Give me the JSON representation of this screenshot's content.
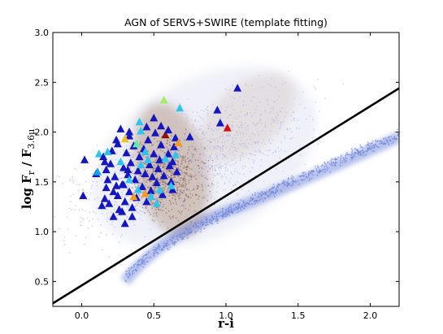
{
  "chart_data": {
    "type": "scatter",
    "title": "AGN of SERVS+SWIRE (template fitting)",
    "xlabel": "r-i",
    "ylabel": {
      "prefix": "log ",
      "f_r": "F",
      "r_sub": "r",
      "slash": " / ",
      "f_36": "F",
      "sub_36": "3.6μ"
    },
    "xlim": [
      -0.2,
      2.2
    ],
    "ylim": [
      0.25,
      3.0
    ],
    "xticks": [
      "0.0",
      "0.5",
      "1.0",
      "1.5",
      "2.0"
    ],
    "yticks": [
      "0.5",
      "1.0",
      "1.5",
      "2.0",
      "2.5",
      "3.0"
    ],
    "grid": false,
    "legend": "none",
    "background_colors": {
      "diffuse": "#b0b8dd",
      "dense": "#7f4a30",
      "stellar_locus": "#5e78d8"
    },
    "dividing_line": {
      "points": [
        [
          -0.2,
          0.28
        ],
        [
          2.2,
          2.44
        ]
      ],
      "color": "#000000"
    },
    "series": [
      {
        "marker": "triangle",
        "points": [
          [
            0.02,
            1.72,
            "#1616c0"
          ],
          [
            0.01,
            1.36,
            "#1616c0"
          ],
          [
            0.1,
            1.58,
            "#1616c0"
          ],
          [
            0.11,
            1.6,
            "#10a8e0"
          ],
          [
            0.12,
            1.78,
            "#2ec4f0"
          ],
          [
            0.15,
            1.75,
            "#1616c0"
          ],
          [
            0.16,
            1.7,
            "#1616c0"
          ],
          [
            0.17,
            1.62,
            "#1616c0"
          ],
          [
            0.14,
            1.26,
            "#1616c0"
          ],
          [
            0.16,
            1.33,
            "#1616c0"
          ],
          [
            0.17,
            1.44,
            "#1616c0"
          ],
          [
            0.18,
            1.52,
            "#1616c0"
          ],
          [
            0.19,
            1.28,
            "#1616c0"
          ],
          [
            0.2,
            1.68,
            "#1616c0"
          ],
          [
            0.21,
            1.81,
            "#1616c0"
          ],
          [
            0.22,
            1.4,
            "#1616c0"
          ],
          [
            0.23,
            1.55,
            "#1616c0"
          ],
          [
            0.24,
            1.92,
            "#1616c0"
          ],
          [
            0.25,
            1.36,
            "#1616c0"
          ],
          [
            0.26,
            1.22,
            "#1616c0"
          ],
          [
            0.27,
            2.03,
            "#1616c0"
          ],
          [
            0.28,
            1.47,
            "#1616c0"
          ],
          [
            0.29,
            1.64,
            "#1616c0"
          ],
          [
            0.3,
            1.3,
            "#1616c0"
          ],
          [
            0.31,
            1.79,
            "#1616c0"
          ],
          [
            0.32,
            1.57,
            "#1616c0"
          ],
          [
            0.33,
            1.96,
            "#1616c0"
          ],
          [
            0.33,
            1.4,
            "#1616c0"
          ],
          [
            0.34,
            1.69,
            "#1616c0"
          ],
          [
            0.35,
            1.24,
            "#1616c0"
          ],
          [
            0.36,
            1.86,
            "#1616c0"
          ],
          [
            0.37,
            1.52,
            "#1616c0"
          ],
          [
            0.38,
            1.34,
            "#1616c0"
          ],
          [
            0.39,
            1.61,
            "#1616c0"
          ],
          [
            0.4,
            1.75,
            "#1616c0"
          ],
          [
            0.41,
            2.01,
            "#2ec4f0"
          ],
          [
            0.42,
            1.45,
            "#1616c0"
          ],
          [
            0.43,
            1.83,
            "#1616c0"
          ],
          [
            0.44,
            1.58,
            "#1616c0"
          ],
          [
            0.45,
            1.3,
            "#1616c0"
          ],
          [
            0.46,
            1.92,
            "#1616c0"
          ],
          [
            0.47,
            1.67,
            "#1616c0"
          ],
          [
            0.48,
            1.41,
            "#1616c0"
          ],
          [
            0.49,
            1.55,
            "#1616c0"
          ],
          [
            0.5,
            1.78,
            "#1616c0"
          ],
          [
            0.51,
            1.99,
            "#1616c0"
          ],
          [
            0.52,
            1.49,
            "#1616c0"
          ],
          [
            0.53,
            1.63,
            "#1616c0"
          ],
          [
            0.54,
            1.72,
            "#1616c0"
          ],
          [
            0.55,
            1.87,
            "#1616c0"
          ],
          [
            0.56,
            1.37,
            "#1616c0"
          ],
          [
            0.57,
            1.56,
            "#1616c0"
          ],
          [
            0.58,
            1.97,
            "#8b1010"
          ],
          [
            0.6,
            1.78,
            "#1616c0"
          ],
          [
            0.61,
            1.66,
            "#1616c0"
          ],
          [
            0.62,
            1.5,
            "#1616c0"
          ],
          [
            0.63,
            1.42,
            "#1616c0"
          ],
          [
            0.64,
            1.85,
            "#1616c0"
          ],
          [
            0.65,
            1.94,
            "#1616c0"
          ],
          [
            0.66,
            1.6,
            "#1616c0"
          ],
          [
            0.3,
            1.08,
            "#1616c0"
          ],
          [
            0.35,
            1.15,
            "#1616c0"
          ],
          [
            0.28,
            1.2,
            "#1616c0"
          ],
          [
            0.22,
            1.15,
            "#1616c0"
          ],
          [
            0.4,
            2.1,
            "#2ec4f0"
          ],
          [
            0.45,
            2.05,
            "#1616c0"
          ],
          [
            0.5,
            2.14,
            "#1616c0"
          ],
          [
            0.33,
            2.0,
            "#1616c0"
          ],
          [
            0.38,
            1.88,
            "#5ef0a0"
          ],
          [
            0.44,
            1.8,
            "#2ec4f0"
          ],
          [
            0.55,
            2.06,
            "#1616c0"
          ],
          [
            0.6,
            2.02,
            "#1616c0"
          ],
          [
            0.36,
            1.35,
            "#f59a20"
          ],
          [
            0.44,
            1.38,
            "#f59a20"
          ],
          [
            0.39,
            1.42,
            "#2ec4f0"
          ],
          [
            0.48,
            1.35,
            "#2ec4f0"
          ],
          [
            0.54,
            1.42,
            "#2ec4f0"
          ],
          [
            0.62,
            1.46,
            "#2ec4f0"
          ],
          [
            0.3,
            1.93,
            "#f0c020"
          ],
          [
            0.27,
            1.7,
            "#2ec4f0"
          ],
          [
            0.18,
            1.8,
            "#2ec4f0"
          ],
          [
            0.46,
            1.72,
            "#2ec4f0"
          ],
          [
            0.52,
            1.28,
            "#2ec4f0"
          ],
          [
            0.58,
            1.73,
            "#2ec4f0"
          ],
          [
            0.65,
            1.77,
            "#2ec4f0"
          ],
          [
            0.67,
            1.89,
            "#f59a20"
          ],
          [
            0.63,
            1.7,
            "#1616c0"
          ],
          [
            0.41,
            1.67,
            "#2ec4f0"
          ],
          [
            0.33,
            1.52,
            "#2ec4f0"
          ],
          [
            0.25,
            1.88,
            "#1616c0"
          ],
          [
            0.68,
            2.24,
            "#2ec4f0"
          ],
          [
            0.57,
            2.32,
            "#a0f060"
          ],
          [
            0.75,
            1.95,
            "#1616c0"
          ],
          [
            0.94,
            2.22,
            "#1616c0"
          ],
          [
            1.08,
            2.44,
            "#1616c0"
          ],
          [
            1.01,
            2.04,
            "#d41010"
          ],
          [
            0.96,
            2.09,
            "#1616c0"
          ],
          [
            0.29,
            1.47,
            "#1616c0"
          ],
          [
            0.32,
            1.62,
            "#1616c0"
          ],
          [
            0.24,
            1.46,
            "#1616c0"
          ]
        ]
      }
    ]
  }
}
